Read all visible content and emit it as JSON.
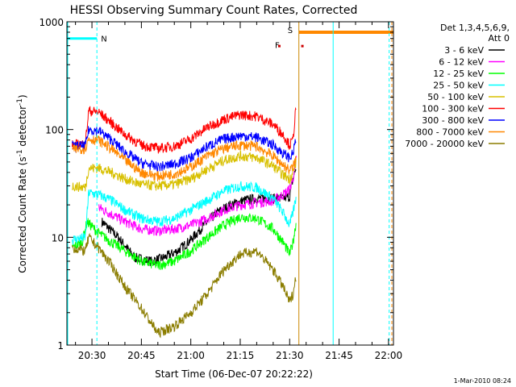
{
  "chart_data": {
    "type": "line",
    "title": "HESSI Observing Summary Count Rates, Corrected",
    "xlabel": "Start Time (06-Dec-07 20:22:22)",
    "ylabel_main": "Corrected Count Rate (s",
    "ylabel_sup1": "-1",
    "ylabel_mid": " detector",
    "ylabel_sup2": "-1",
    "ylabel_end": ")",
    "y_scale": "log",
    "ylim": [
      1,
      1000
    ],
    "xlim_minutes": [
      22.4,
      121.5
    ],
    "x_tick_labels": [
      {
        "label": "20:30",
        "minutes": 30
      },
      {
        "label": "20:45",
        "minutes": 45
      },
      {
        "label": "21:00",
        "minutes": 60
      },
      {
        "label": "21:15",
        "minutes": 75
      },
      {
        "label": "21:30",
        "minutes": 90
      },
      {
        "label": "21:45",
        "minutes": 105
      },
      {
        "label": "22:00",
        "minutes": 120
      }
    ],
    "y_tick_labels": [
      {
        "label": "1",
        "value": 1
      },
      {
        "label": "10",
        "value": 10
      },
      {
        "label": "100",
        "value": 100
      },
      {
        "label": "1000",
        "value": 1000
      }
    ],
    "legend": {
      "placement": "top-right",
      "header_line1": "Det 1,3,4,5,6,9,",
      "header_line2": "Att 0"
    },
    "series": [
      {
        "name": "3 - 6 keV",
        "color": "#000000",
        "points": [
          [
            24,
            null
          ],
          [
            33,
            14
          ],
          [
            38,
            10
          ],
          [
            43,
            6.5
          ],
          [
            48,
            6
          ],
          [
            52,
            6.5
          ],
          [
            56,
            7.5
          ],
          [
            60,
            9.5
          ],
          [
            64,
            13
          ],
          [
            68,
            17
          ],
          [
            72,
            20
          ],
          [
            76,
            22
          ],
          [
            80,
            23
          ],
          [
            84,
            23
          ],
          [
            88,
            23
          ],
          [
            90,
            24
          ],
          [
            91,
            35
          ],
          [
            92,
            45
          ],
          [
            93,
            null
          ]
        ]
      },
      {
        "name": "6 - 12 keV",
        "color": "#ff00ff",
        "points": [
          [
            32,
            19
          ],
          [
            35,
            17
          ],
          [
            40,
            14
          ],
          [
            45,
            12
          ],
          [
            50,
            11.5
          ],
          [
            55,
            12
          ],
          [
            60,
            13
          ],
          [
            65,
            15
          ],
          [
            70,
            18
          ],
          [
            75,
            20
          ],
          [
            80,
            21
          ],
          [
            85,
            22
          ],
          [
            88,
            25
          ],
          [
            90,
            28
          ],
          [
            91.5,
            40
          ],
          [
            92.2,
            60
          ]
        ]
      },
      {
        "name": "12 - 25 keV",
        "color": "#00ff00",
        "points": [
          [
            24,
            8
          ],
          [
            27,
            9
          ],
          [
            28.5,
            14
          ],
          [
            32,
            11
          ],
          [
            36,
            9
          ],
          [
            40,
            7.5
          ],
          [
            45,
            6
          ],
          [
            50,
            5.5
          ],
          [
            55,
            6
          ],
          [
            60,
            7.5
          ],
          [
            65,
            10
          ],
          [
            70,
            13
          ],
          [
            75,
            15.5
          ],
          [
            80,
            15
          ],
          [
            85,
            12
          ],
          [
            88,
            9
          ],
          [
            90,
            7
          ],
          [
            91,
            9
          ],
          [
            92,
            14
          ]
        ]
      },
      {
        "name": "25 - 50 keV",
        "color": "#00ffff",
        "points": [
          [
            24,
            9.5
          ],
          [
            28,
            10
          ],
          [
            29,
            26
          ],
          [
            32,
            25
          ],
          [
            36,
            22
          ],
          [
            40,
            18
          ],
          [
            45,
            15
          ],
          [
            50,
            14
          ],
          [
            55,
            15
          ],
          [
            60,
            18
          ],
          [
            65,
            22
          ],
          [
            70,
            27
          ],
          [
            75,
            30
          ],
          [
            80,
            29
          ],
          [
            85,
            23
          ],
          [
            88,
            17
          ],
          [
            90,
            13
          ],
          [
            91,
            17
          ],
          [
            92,
            24
          ]
        ]
      },
      {
        "name": "50 - 100 keV",
        "color": "#d8c000",
        "points": [
          [
            24,
            30
          ],
          [
            28,
            29
          ],
          [
            29,
            44
          ],
          [
            32,
            44
          ],
          [
            36,
            40
          ],
          [
            40,
            35
          ],
          [
            45,
            31
          ],
          [
            50,
            30
          ],
          [
            55,
            31
          ],
          [
            60,
            35
          ],
          [
            65,
            43
          ],
          [
            70,
            52
          ],
          [
            75,
            57
          ],
          [
            80,
            55
          ],
          [
            85,
            46
          ],
          [
            88,
            38
          ],
          [
            90,
            35
          ],
          [
            91,
            40
          ],
          [
            92,
            50
          ]
        ]
      },
      {
        "name": "100 - 300 keV",
        "color": "#ff0000",
        "points": [
          [
            24,
            72
          ],
          [
            28,
            74
          ],
          [
            29,
            150
          ],
          [
            32,
            145
          ],
          [
            36,
            115
          ],
          [
            40,
            90
          ],
          [
            45,
            72
          ],
          [
            50,
            67
          ],
          [
            55,
            70
          ],
          [
            60,
            82
          ],
          [
            65,
            105
          ],
          [
            70,
            125
          ],
          [
            75,
            138
          ],
          [
            80,
            133
          ],
          [
            85,
            112
          ],
          [
            88,
            90
          ],
          [
            90,
            72
          ],
          [
            91,
            80
          ],
          [
            92,
            175
          ]
        ]
      },
      {
        "name": "300 - 800 keV",
        "color": "#0000ff",
        "points": [
          [
            24,
            70
          ],
          [
            28,
            71
          ],
          [
            29,
            100
          ],
          [
            32,
            98
          ],
          [
            36,
            80
          ],
          [
            40,
            62
          ],
          [
            45,
            49
          ],
          [
            50,
            45
          ],
          [
            55,
            48
          ],
          [
            60,
            55
          ],
          [
            65,
            70
          ],
          [
            70,
            82
          ],
          [
            75,
            88
          ],
          [
            80,
            85
          ],
          [
            85,
            72
          ],
          [
            88,
            60
          ],
          [
            90,
            55
          ],
          [
            91,
            60
          ],
          [
            92,
            85
          ]
        ]
      },
      {
        "name": "800 - 7000 keV",
        "color": "#ff8800",
        "points": [
          [
            24,
            65
          ],
          [
            28,
            67
          ],
          [
            29,
            82
          ],
          [
            32,
            80
          ],
          [
            36,
            66
          ],
          [
            40,
            52
          ],
          [
            45,
            40
          ],
          [
            50,
            37
          ],
          [
            55,
            39
          ],
          [
            60,
            45
          ],
          [
            65,
            57
          ],
          [
            70,
            67
          ],
          [
            75,
            72
          ],
          [
            80,
            70
          ],
          [
            85,
            57
          ],
          [
            88,
            47
          ],
          [
            90,
            42
          ],
          [
            91,
            45
          ],
          [
            92,
            55
          ]
        ]
      },
      {
        "name": "7000 - 20000 keV",
        "color": "#8b7d00",
        "points": [
          [
            24,
            8
          ],
          [
            28,
            7.5
          ],
          [
            29,
            10
          ],
          [
            32,
            8
          ],
          [
            36,
            5.5
          ],
          [
            40,
            3.5
          ],
          [
            45,
            2.2
          ],
          [
            48,
            1.6
          ],
          [
            50,
            1.3
          ],
          [
            55,
            1.5
          ],
          [
            60,
            2
          ],
          [
            65,
            3
          ],
          [
            70,
            5
          ],
          [
            75,
            7
          ],
          [
            80,
            7.5
          ],
          [
            85,
            5
          ],
          [
            88,
            3.5
          ],
          [
            90,
            2.5
          ],
          [
            91,
            3
          ],
          [
            92,
            4.5
          ]
        ]
      }
    ],
    "night_intervals": [
      {
        "label": "N",
        "start_minutes": 22.4,
        "end_minutes": 31.5,
        "level": 700
      }
    ],
    "saa_intervals": [
      {
        "label": "S",
        "start_minutes": 92.8,
        "end_minutes": 121.5,
        "level": 800
      }
    ],
    "flare_marker": {
      "label": "F",
      "color": "#cc0000",
      "dots_minutes": [
        86.5,
        93.5
      ],
      "level": 600
    },
    "cyan_lines_minutes": [
      31.5,
      103.2,
      120.2
    ],
    "orange_line_minutes": 92.8,
    "gap_fill_minutes": [
      22.4,
      27.8
    ]
  },
  "footer": {
    "date_stamp": "1-Mar-2010 08:24"
  }
}
